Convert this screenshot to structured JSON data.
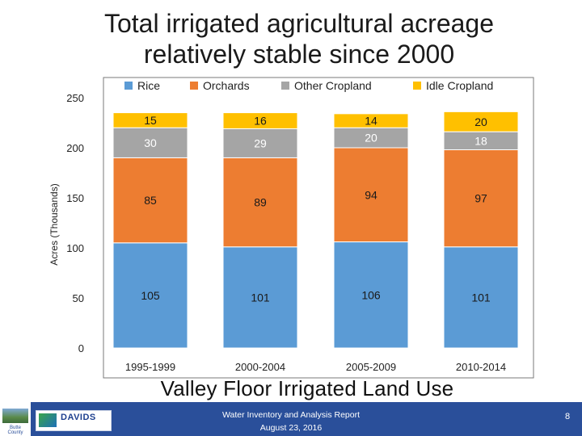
{
  "slide": {
    "title_line1": "Total irrigated agricultural acreage",
    "title_line2": "relatively stable since 2000",
    "subtitle": "Valley Floor Irrigated Land Use",
    "footer_line1": "Water Inventory and Analysis Report",
    "footer_line2": "August 23, 2016",
    "page_number": "8",
    "county_logo_text": "Butte County",
    "firm_logo_text": "DAVIDS"
  },
  "chart_data": {
    "type": "bar",
    "stacked": true,
    "categories": [
      "1995-1999",
      "2000-2004",
      "2005-2009",
      "2010-2014"
    ],
    "series": [
      {
        "name": "Rice",
        "color": "#5b9bd5",
        "values": [
          105,
          101,
          106,
          101
        ]
      },
      {
        "name": "Orchards",
        "color": "#ed7d31",
        "values": [
          85,
          89,
          94,
          97
        ]
      },
      {
        "name": "Other Cropland",
        "color": "#a5a5a5",
        "values": [
          30,
          29,
          20,
          18
        ]
      },
      {
        "name": "Idle Cropland",
        "color": "#ffc000",
        "values": [
          15,
          16,
          14,
          20
        ]
      }
    ],
    "title": "",
    "xlabel": "",
    "ylabel": "Acres (Thousands)",
    "ylim": [
      0,
      250
    ],
    "yticks": [
      0,
      50,
      100,
      150,
      200,
      250
    ],
    "grid": false,
    "legend": "top"
  }
}
